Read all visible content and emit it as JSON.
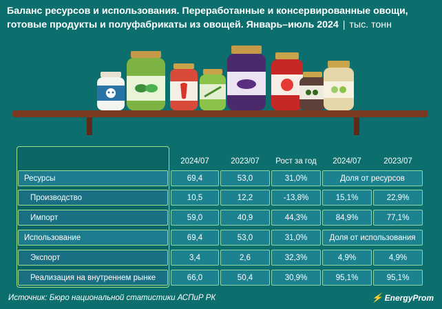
{
  "header": {
    "title": "Баланс ресурсов и использования. Переработанные и консервированные овощи, готовые продукты и полуфабрикаты из овощей. Январь–июль 2024",
    "separator": "|",
    "unit": "тыс. тонн"
  },
  "colors": {
    "background": "#0d6e6e",
    "row_main": "#1f7c8e",
    "row_border": "#9fe08f",
    "shelf": "#7a3a22"
  },
  "chart_data": {
    "type": "table",
    "columns": [
      "",
      "2024/07",
      "2023/07",
      "Рост за год",
      "2024/07",
      "2023/07"
    ],
    "rows": [
      {
        "label": "Ресурсы",
        "level": 0,
        "values": [
          "69,4",
          "53,0",
          "31,0%"
        ],
        "share_note": "Доля от ресурсов"
      },
      {
        "label": "Производство",
        "level": 1,
        "values": [
          "10,5",
          "12,2",
          "-13,8%",
          "15,1%",
          "22,9%"
        ]
      },
      {
        "label": "Импорт",
        "level": 1,
        "values": [
          "59,0",
          "40,9",
          "44,3%",
          "84,9%",
          "77,1%"
        ]
      },
      {
        "label": "Использование",
        "level": 0,
        "values": [
          "69,4",
          "53,0",
          "31,0%"
        ],
        "share_note": "Доля от использования"
      },
      {
        "label": "Экспорт",
        "level": 1,
        "values": [
          "3,4",
          "2,6",
          "32,3%",
          "4,9%",
          "4,9%"
        ]
      },
      {
        "label": "Реализация на внутреннем рынке",
        "level": 1,
        "values": [
          "66,0",
          "50,4",
          "30,9%",
          "95,1%",
          "95,1%"
        ]
      }
    ]
  },
  "footer": {
    "source": "Источник: Бюро национальной статистики АСПиР РК",
    "logo": "EnergyProm"
  }
}
